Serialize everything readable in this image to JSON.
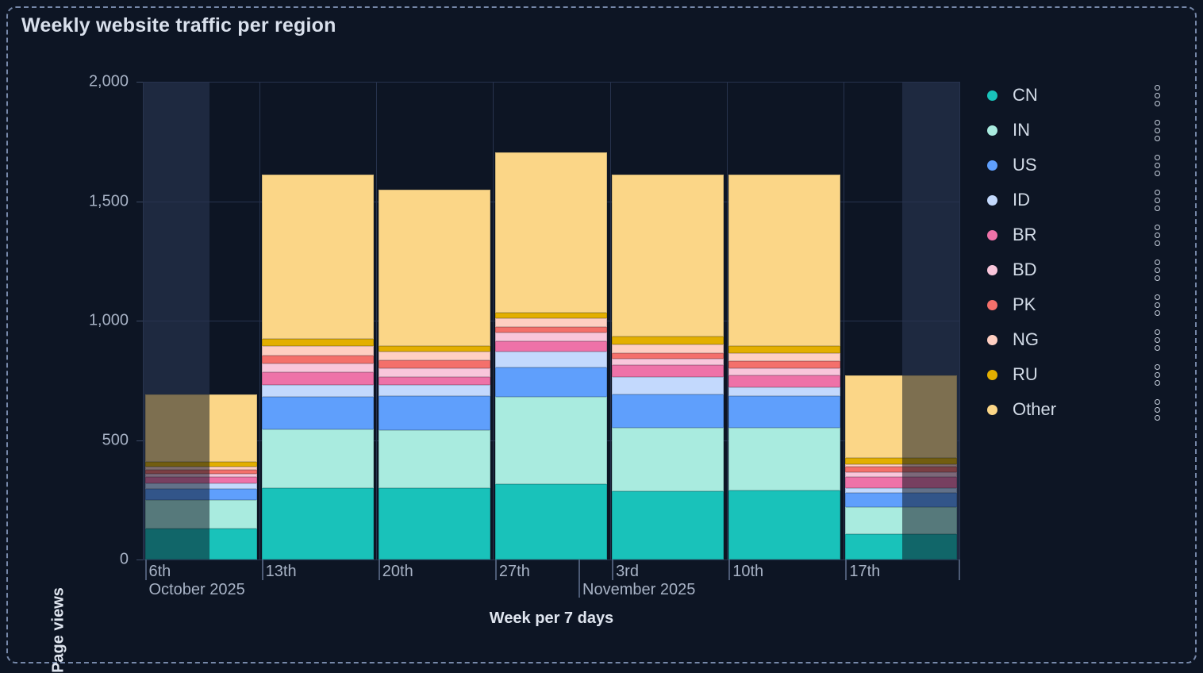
{
  "panel": {
    "title": "Weekly website traffic per region",
    "colors": {
      "background": "#0d1524",
      "dashed_border": "#7688a9",
      "grid": "#27334e",
      "out_of_range_band": "#1e2940",
      "title_text": "#d9e0ec",
      "tick_text": "#a7b2c5",
      "legend_text": "#d2dbe7"
    }
  },
  "chart_data": {
    "type": "bar",
    "stacked": true,
    "title": "Weekly website traffic per region",
    "xlabel": "Week per 7 days",
    "ylabel": "Page views",
    "ylim": [
      0,
      2000
    ],
    "grid": true,
    "legend_position": "right",
    "yticks": [
      {
        "value": 0,
        "label": "0"
      },
      {
        "value": 500,
        "label": "500"
      },
      {
        "value": 1000,
        "label": "1,000"
      },
      {
        "value": 1500,
        "label": "1,500"
      },
      {
        "value": 2000,
        "label": "2,000"
      }
    ],
    "categories": [
      "6th",
      "13th",
      "20th",
      "27th",
      "3rd",
      "10th",
      "17th"
    ],
    "month_ticks": [
      {
        "label": "October 2025",
        "week_index": 0,
        "day": 0
      },
      {
        "label": "November 2025",
        "week_index": 3,
        "day": 5
      }
    ],
    "series": [
      {
        "name": "CN",
        "color": "#19c2ba",
        "values": [
          130,
          300,
          300,
          315,
          285,
          290,
          105
        ]
      },
      {
        "name": "IN",
        "color": "#a9ebdf",
        "values": [
          120,
          245,
          240,
          365,
          265,
          260,
          115
        ]
      },
      {
        "name": "US",
        "color": "#5f9ffc",
        "values": [
          45,
          135,
          145,
          125,
          140,
          135,
          60
        ]
      },
      {
        "name": "ID",
        "color": "#c3d9fd",
        "values": [
          25,
          50,
          45,
          65,
          75,
          35,
          20
        ]
      },
      {
        "name": "BR",
        "color": "#ee72a8",
        "values": [
          25,
          55,
          35,
          45,
          50,
          50,
          45
        ]
      },
      {
        "name": "BD",
        "color": "#f9c6db",
        "values": [
          15,
          35,
          35,
          35,
          25,
          30,
          20
        ]
      },
      {
        "name": "PK",
        "color": "#f4706b",
        "values": [
          15,
          35,
          35,
          25,
          25,
          30,
          25
        ]
      },
      {
        "name": "NG",
        "color": "#ffcfc2",
        "values": [
          15,
          40,
          35,
          35,
          35,
          35,
          10
        ]
      },
      {
        "name": "RU",
        "color": "#e3af00",
        "values": [
          20,
          30,
          25,
          25,
          35,
          30,
          25
        ]
      },
      {
        "name": "Other",
        "color": "#fbd687",
        "values": [
          280,
          685,
          655,
          670,
          675,
          715,
          345
        ]
      }
    ],
    "bar_totals": [
      690,
      1610,
      1550,
      1705,
      1610,
      1610,
      770
    ],
    "partial_weeks": [
      {
        "category_index": 0,
        "dimmed_side": "left",
        "fraction": 0.58
      },
      {
        "category_index": 6,
        "dimmed_side": "right",
        "fraction": 0.49
      }
    ]
  },
  "legend": {
    "menu_icon": "kebab-vertical-icon"
  }
}
